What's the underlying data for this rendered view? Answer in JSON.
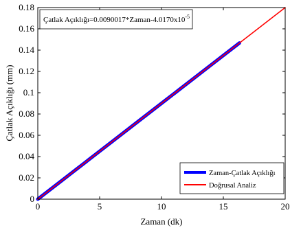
{
  "chart_data": {
    "type": "line",
    "title": "",
    "xlabel": "Zaman (dk)",
    "ylabel": "Çatlak Açıklığı (mm)",
    "xlim": [
      0,
      20
    ],
    "ylim": [
      0,
      0.18
    ],
    "x_ticks": [
      0,
      5,
      10,
      15,
      20
    ],
    "y_ticks": [
      0,
      0.02,
      0.04,
      0.06,
      0.08,
      0.1,
      0.12,
      0.14,
      0.16,
      0.18
    ],
    "x_tick_labels": [
      "0",
      "5",
      "10",
      "15",
      "20"
    ],
    "y_tick_labels": [
      "0",
      "0.02",
      "0.04",
      "0.06",
      "0.08",
      "0.1",
      "0.12",
      "0.14",
      "0.16",
      "0.18"
    ],
    "grid": false,
    "annotation": {
      "text_main": "Çatlak Açıklığı=0.0090017*Zaman-4.0170x10",
      "text_exp": "-5"
    },
    "legend": {
      "placement": "bottom-right"
    },
    "series": [
      {
        "name": "Zaman-Çatlak Açıklığı",
        "color": "#0000ff",
        "style": "thick",
        "x": [
          0,
          2,
          4,
          6,
          8,
          10,
          12,
          14,
          16.3
        ],
        "y": [
          0,
          0.018,
          0.036,
          0.054,
          0.072,
          0.09,
          0.108,
          0.126,
          0.1467
        ]
      },
      {
        "name": "Doğrusal Analiz",
        "color": "#ff0000",
        "style": "thin",
        "x": [
          0,
          20
        ],
        "y": [
          -4.017e-05,
          0.17999383
        ]
      }
    ]
  }
}
